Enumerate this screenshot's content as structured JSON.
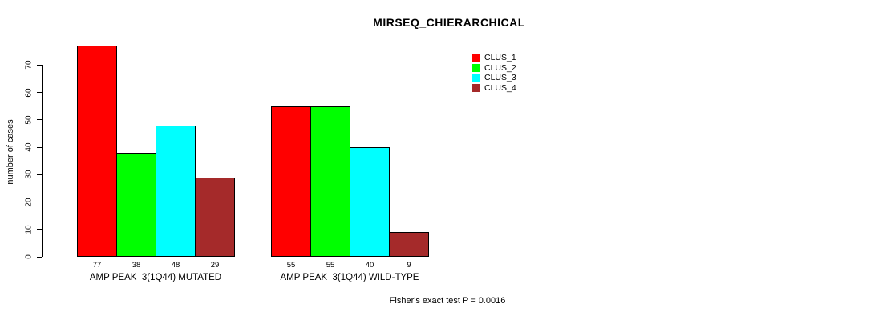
{
  "chart_data": {
    "type": "bar",
    "title": "MIRSEQ_CHIERARCHICAL",
    "ylabel": "number of cases",
    "xlabel": "",
    "categories": [
      "AMP PEAK  3(1Q44) MUTATED",
      "AMP PEAK  3(1Q44) WILD-TYPE"
    ],
    "series": [
      {
        "name": "CLUS_1",
        "color": "#ff0000",
        "values": [
          77,
          55
        ]
      },
      {
        "name": "CLUS_2",
        "color": "#00ff00",
        "values": [
          38,
          55
        ]
      },
      {
        "name": "CLUS_3",
        "color": "#00ffff",
        "values": [
          48,
          40
        ]
      },
      {
        "name": "CLUS_4",
        "color": "#a52a2a",
        "values": [
          29,
          9
        ]
      }
    ],
    "bar_value_labels": [
      [
        "77",
        "38",
        "48",
        "29"
      ],
      [
        "55",
        "55",
        "40",
        "9"
      ]
    ],
    "yticks": [
      0,
      10,
      20,
      30,
      40,
      50,
      60,
      70
    ],
    "ylim": [
      0,
      77
    ],
    "grid": false,
    "legend_position": "top-right",
    "annotation": "Fisher's exact test P = 0.0016"
  },
  "colors": {
    "background": "#ffffff",
    "axis": "#000000",
    "text": "#000000"
  }
}
